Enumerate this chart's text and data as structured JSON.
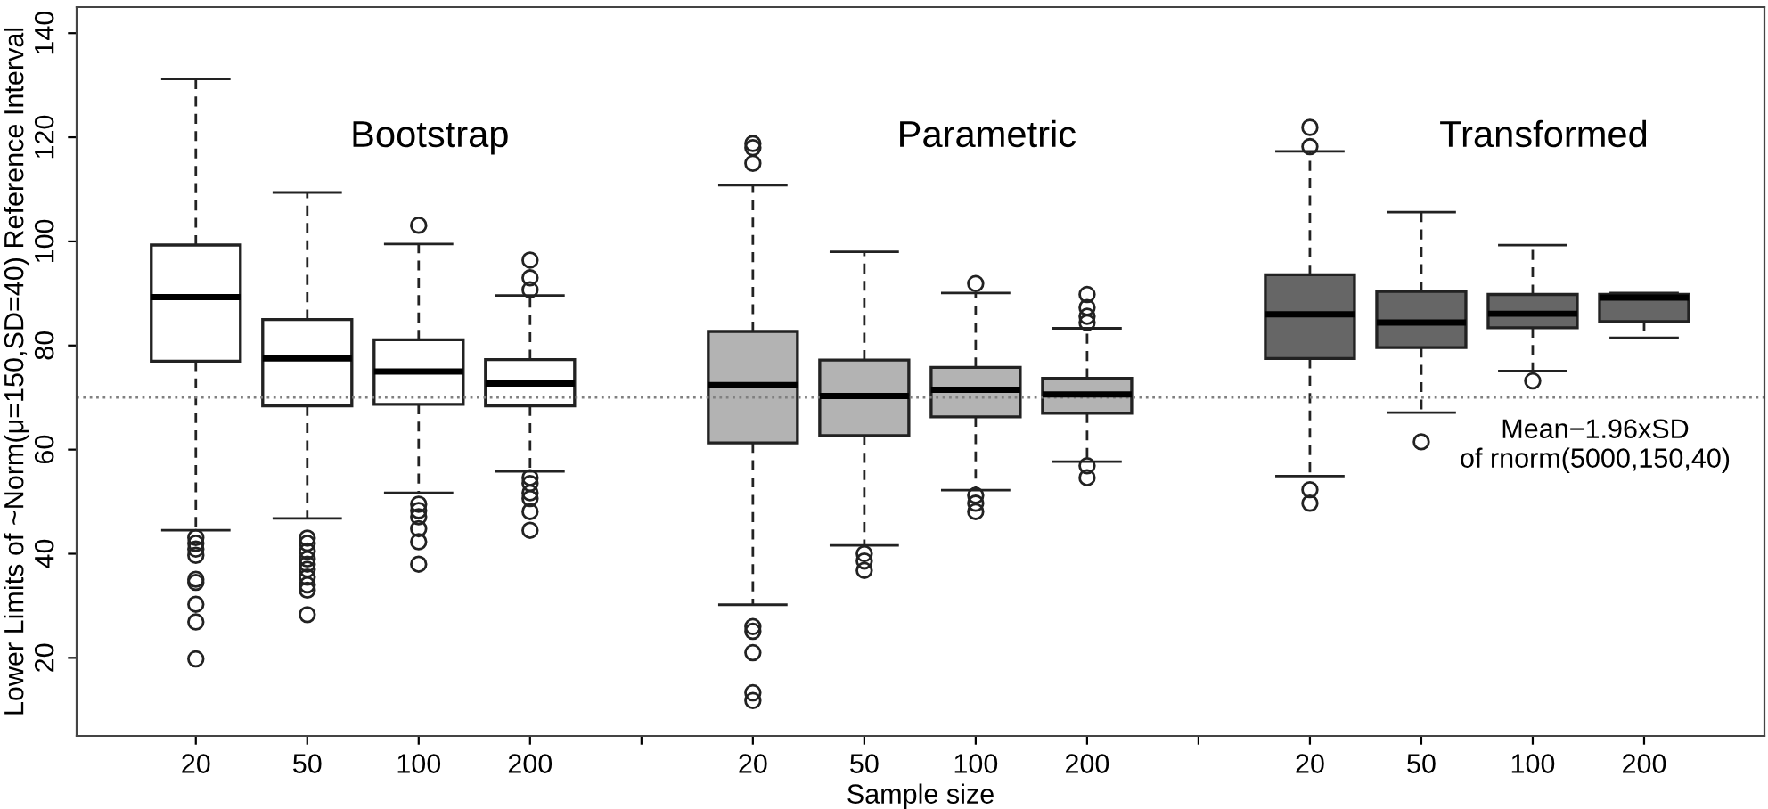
{
  "chart_data": {
    "type": "box",
    "xlabel": "Sample size",
    "ylabel": "Lower Limits of ~Norm(μ=150,SD=40) Reference Interval",
    "categories": [
      "20",
      "50",
      "100",
      "200",
      null,
      "20",
      "50",
      "100",
      "200",
      null,
      "20",
      "50",
      "100",
      "200"
    ],
    "series": [
      {
        "color": "#ffffff",
        "boxes": [
          {
            "low": 44.5,
            "q1": 77.0,
            "median": 89.3,
            "q3": 99.3,
            "high": 131.2,
            "outliers": [
              43.1,
              42.0,
              40.9,
              39.7,
              35.1,
              34.5,
              30.3,
              26.9,
              19.8
            ]
          },
          {
            "low": 46.8,
            "q1": 68.4,
            "median": 77.5,
            "q3": 85.0,
            "high": 109.4,
            "outliers": [
              43,
              42,
              40.5,
              39,
              38,
              37,
              35.5,
              34,
              33,
              28.3
            ]
          },
          {
            "low": 51.7,
            "q1": 68.7,
            "median": 75.0,
            "q3": 81.1,
            "high": 99.5,
            "outliers": [
              103.1,
              49.5,
              48.3,
              47.1,
              44.8,
              42.3,
              38.0
            ]
          },
          {
            "low": 55.8,
            "q1": 68.4,
            "median": 72.7,
            "q3": 77.3,
            "high": 89.6,
            "outliers": [
              96.4,
              93.0,
              90.7,
              54.6,
              53.5,
              51.7,
              50.6,
              48.1,
              44.5
            ]
          },
          null,
          null,
          null,
          null,
          null,
          null,
          null,
          null,
          null,
          null
        ]
      },
      {
        "color": "#b3b3b3",
        "boxes": [
          null,
          null,
          null,
          null,
          null,
          {
            "low": 30.2,
            "q1": 61.3,
            "median": 72.4,
            "q3": 82.7,
            "high": 110.8,
            "outliers": [
              118.8,
              118.0,
              115.0,
              26.0,
              25.1,
              21.0,
              13.3,
              11.8
            ]
          },
          {
            "low": 41.6,
            "q1": 62.7,
            "median": 70.3,
            "q3": 77.2,
            "high": 98.0,
            "outliers": [
              40.0,
              38.6,
              36.8
            ]
          },
          {
            "low": 52.2,
            "q1": 66.3,
            "median": 71.5,
            "q3": 75.8,
            "high": 90.1,
            "outliers": [
              91.9,
              51.2,
              49.7,
              48.1
            ]
          },
          {
            "low": 57.7,
            "q1": 67.0,
            "median": 70.6,
            "q3": 73.7,
            "high": 83.3,
            "outliers": [
              89.8,
              87.3,
              85.6,
              84.4,
              56.9,
              54.6
            ]
          },
          null,
          null,
          null,
          null,
          null
        ]
      },
      {
        "color": "#666666",
        "boxes": [
          null,
          null,
          null,
          null,
          null,
          null,
          null,
          null,
          null,
          null,
          {
            "low": 54.9,
            "q1": 77.5,
            "median": 86.0,
            "q3": 93.6,
            "high": 117.3,
            "outliers": [
              121.9,
              118.2,
              52.3,
              49.7
            ]
          },
          {
            "low": 67.1,
            "q1": 79.6,
            "median": 84.4,
            "q3": 90.4,
            "high": 105.6,
            "outliers": [
              61.5
            ]
          },
          {
            "low": 75.1,
            "q1": 83.4,
            "median": 86.1,
            "q3": 89.8,
            "high": 99.3,
            "outliers": [
              73.2
            ]
          },
          {
            "low": 81.5,
            "q1": 84.6,
            "median": 89.2,
            "q3": 89.8,
            "high": 90.1
          }
        ]
      }
    ],
    "ylim": [
      5,
      145
    ],
    "yticks": [
      20,
      40,
      60,
      80,
      100,
      120,
      140
    ],
    "ref_lines": [
      {
        "axis": "y",
        "value": 70,
        "label": "Mean−1.96xSD\nof rnorm(5000,150,40)",
        "color": "#808080",
        "line_style": "dotted"
      }
    ],
    "annotations": [
      "Bootstrap",
      "Parametric",
      "Transformed"
    ],
    "grid": false,
    "legend": false
  }
}
